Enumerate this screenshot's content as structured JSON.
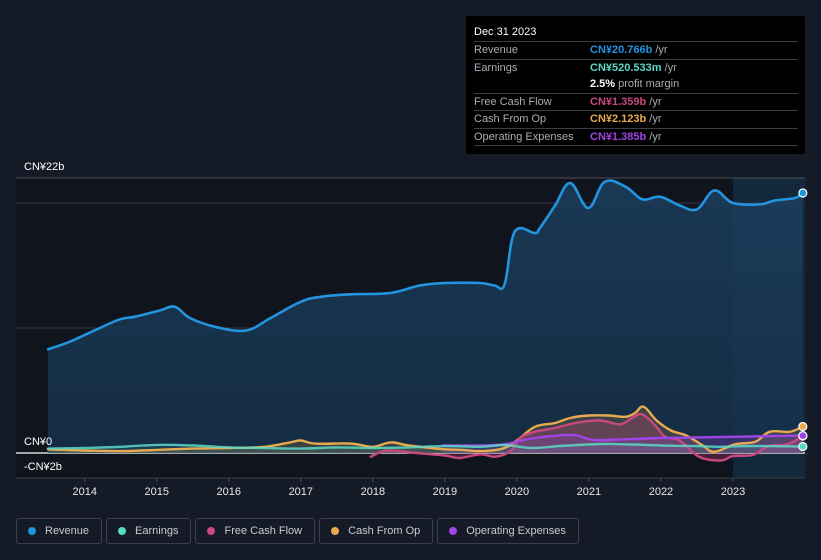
{
  "tooltip": {
    "date": "Dec 31 2023",
    "rows": [
      {
        "label": "Revenue",
        "value": "CN¥20.766b",
        "unit": "/yr",
        "color": "#2394df"
      },
      {
        "label": "Earnings",
        "value": "CN¥520.533m",
        "unit": "/yr",
        "color": "#5ad8c6"
      },
      {
        "label": "",
        "value": "2.5%",
        "unit": "profit margin",
        "color": "#ffffff"
      },
      {
        "label": "Free Cash Flow",
        "value": "CN¥1.359b",
        "unit": "/yr",
        "color": "#c9487f"
      },
      {
        "label": "Cash From Op",
        "value": "CN¥2.123b",
        "unit": "/yr",
        "color": "#e8a94f"
      },
      {
        "label": "Operating Expenses",
        "value": "CN¥1.385b",
        "unit": "/yr",
        "color": "#a044e6"
      }
    ]
  },
  "legend": [
    {
      "label": "Revenue",
      "color": "#2394df"
    },
    {
      "label": "Earnings",
      "color": "#5ad8c6"
    },
    {
      "label": "Free Cash Flow",
      "color": "#c9487f"
    },
    {
      "label": "Cash From Op",
      "color": "#e8a94f"
    },
    {
      "label": "Operating Expenses",
      "color": "#a044e6"
    }
  ],
  "chart_data": {
    "type": "area",
    "title": "",
    "xlabel": "",
    "ylabel": "",
    "unit": "CN¥ billions",
    "xlim": [
      2013.49,
      2024.0
    ],
    "ylim": [
      -2,
      22
    ],
    "y_tick_labels": [
      {
        "value": 22,
        "label": "CN¥22b"
      },
      {
        "value": 0,
        "label": "CN¥0"
      },
      {
        "value": -2,
        "label": "-CN¥2b"
      }
    ],
    "gridlines": [
      20,
      10
    ],
    "x_ticks": [
      2014,
      2015,
      2016,
      2017,
      2018,
      2019,
      2020,
      2021,
      2022,
      2023
    ],
    "x_tick_labels": [
      "2014",
      "2015",
      "2016",
      "2017",
      "2018",
      "2019",
      "2020",
      "2021",
      "2022",
      "2023"
    ],
    "highlight_range": [
      2023.0,
      2024.0
    ],
    "legend_position": "bottom-left",
    "series": [
      {
        "name": "Revenue",
        "color": "#2394df",
        "points": [
          [
            2013.49,
            8.3
          ],
          [
            2013.79,
            8.9
          ],
          [
            2014.21,
            10.0
          ],
          [
            2014.49,
            10.7
          ],
          [
            2014.69,
            10.9
          ],
          [
            2015.04,
            11.4
          ],
          [
            2015.25,
            11.7
          ],
          [
            2015.46,
            10.8
          ],
          [
            2015.81,
            10.1
          ],
          [
            2016.24,
            9.8
          ],
          [
            2016.58,
            10.8
          ],
          [
            2017.0,
            12.1
          ],
          [
            2017.28,
            12.5
          ],
          [
            2017.69,
            12.7
          ],
          [
            2018.24,
            12.8
          ],
          [
            2018.65,
            13.4
          ],
          [
            2019.0,
            13.6
          ],
          [
            2019.49,
            13.6
          ],
          [
            2019.69,
            13.4
          ],
          [
            2019.83,
            13.5
          ],
          [
            2019.97,
            17.7
          ],
          [
            2020.25,
            17.6
          ],
          [
            2020.32,
            18.0
          ],
          [
            2020.53,
            19.8
          ],
          [
            2020.74,
            21.6
          ],
          [
            2020.99,
            19.6
          ],
          [
            2021.22,
            21.7
          ],
          [
            2021.51,
            21.3
          ],
          [
            2021.74,
            20.3
          ],
          [
            2021.99,
            20.5
          ],
          [
            2022.26,
            19.8
          ],
          [
            2022.5,
            19.5
          ],
          [
            2022.74,
            21.0
          ],
          [
            2023.0,
            20.0
          ],
          [
            2023.38,
            19.9
          ],
          [
            2023.58,
            20.2
          ],
          [
            2023.86,
            20.4
          ],
          [
            2023.97,
            20.8
          ]
        ]
      },
      {
        "name": "Earnings",
        "color": "#5ad8c6",
        "points": [
          [
            2013.49,
            0.35
          ],
          [
            2014.0,
            0.4
          ],
          [
            2014.5,
            0.5
          ],
          [
            2015.0,
            0.65
          ],
          [
            2015.5,
            0.6
          ],
          [
            2016.0,
            0.45
          ],
          [
            2016.5,
            0.4
          ],
          [
            2017.0,
            0.35
          ],
          [
            2017.5,
            0.45
          ],
          [
            2018.0,
            0.4
          ],
          [
            2018.5,
            0.45
          ],
          [
            2019.0,
            0.55
          ],
          [
            2019.5,
            0.5
          ],
          [
            2019.83,
            0.64
          ],
          [
            2020.2,
            0.4
          ],
          [
            2020.6,
            0.56
          ],
          [
            2021.15,
            0.72
          ],
          [
            2021.6,
            0.68
          ],
          [
            2022.0,
            0.6
          ],
          [
            2022.5,
            0.55
          ],
          [
            2022.83,
            0.5
          ],
          [
            2023.25,
            0.56
          ],
          [
            2023.97,
            0.52
          ]
        ]
      },
      {
        "name": "Free Cash Flow",
        "color": "#c9487f",
        "points": [
          [
            2017.97,
            -0.3
          ],
          [
            2018.2,
            0.2
          ],
          [
            2018.6,
            0.0
          ],
          [
            2019.0,
            -0.2
          ],
          [
            2019.2,
            -0.4
          ],
          [
            2019.5,
            -0.1
          ],
          [
            2019.69,
            -0.3
          ],
          [
            2019.9,
            0.1
          ],
          [
            2020.05,
            1.2
          ],
          [
            2020.25,
            1.7
          ],
          [
            2020.53,
            2.0
          ],
          [
            2020.81,
            2.4
          ],
          [
            2021.15,
            2.6
          ],
          [
            2021.43,
            2.3
          ],
          [
            2021.6,
            2.8
          ],
          [
            2021.74,
            3.1
          ],
          [
            2021.92,
            2.2
          ],
          [
            2022.06,
            1.3
          ],
          [
            2022.26,
            1.0
          ],
          [
            2022.53,
            -0.3
          ],
          [
            2022.83,
            -0.6
          ],
          [
            2023.0,
            -0.25
          ],
          [
            2023.28,
            -0.15
          ],
          [
            2023.49,
            0.55
          ],
          [
            2023.76,
            0.7
          ],
          [
            2023.97,
            1.36
          ]
        ]
      },
      {
        "name": "Cash From Op",
        "color": "#e8a94f",
        "points": [
          [
            2013.49,
            0.3
          ],
          [
            2014.0,
            0.2
          ],
          [
            2014.5,
            0.15
          ],
          [
            2015.0,
            0.25
          ],
          [
            2015.5,
            0.35
          ],
          [
            2016.0,
            0.4
          ],
          [
            2016.5,
            0.5
          ],
          [
            2016.85,
            0.85
          ],
          [
            2017.0,
            1.0
          ],
          [
            2017.2,
            0.75
          ],
          [
            2017.69,
            0.75
          ],
          [
            2018.0,
            0.5
          ],
          [
            2018.25,
            0.85
          ],
          [
            2018.5,
            0.6
          ],
          [
            2019.0,
            0.3
          ],
          [
            2019.25,
            0.25
          ],
          [
            2019.5,
            0.15
          ],
          [
            2019.8,
            0.35
          ],
          [
            2020.0,
            1.0
          ],
          [
            2020.25,
            2.1
          ],
          [
            2020.53,
            2.4
          ],
          [
            2020.74,
            2.8
          ],
          [
            2021.0,
            3.0
          ],
          [
            2021.28,
            3.0
          ],
          [
            2021.51,
            2.9
          ],
          [
            2021.64,
            3.2
          ],
          [
            2021.76,
            3.7
          ],
          [
            2021.94,
            2.6
          ],
          [
            2022.14,
            1.8
          ],
          [
            2022.35,
            1.4
          ],
          [
            2022.57,
            0.65
          ],
          [
            2022.74,
            0.1
          ],
          [
            2023.03,
            0.7
          ],
          [
            2023.31,
            0.9
          ],
          [
            2023.51,
            1.7
          ],
          [
            2023.79,
            1.7
          ],
          [
            2023.97,
            2.12
          ]
        ]
      },
      {
        "name": "Operating Expenses",
        "color": "#a044e6",
        "points": [
          [
            2018.97,
            0.6
          ],
          [
            2019.5,
            0.6
          ],
          [
            2019.83,
            0.7
          ],
          [
            2020.1,
            1.05
          ],
          [
            2020.38,
            1.3
          ],
          [
            2020.78,
            1.45
          ],
          [
            2021.06,
            1.05
          ],
          [
            2021.5,
            1.1
          ],
          [
            2022.0,
            1.2
          ],
          [
            2022.5,
            1.25
          ],
          [
            2023.0,
            1.3
          ],
          [
            2023.5,
            1.35
          ],
          [
            2023.97,
            1.39
          ]
        ]
      }
    ]
  }
}
